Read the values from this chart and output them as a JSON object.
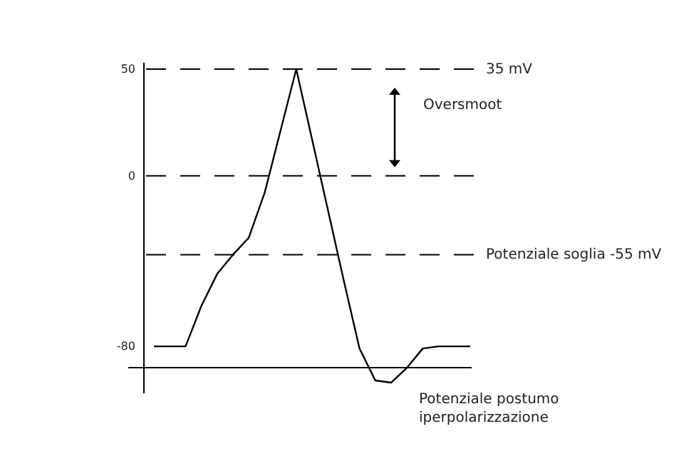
{
  "chart_data": {
    "type": "line",
    "categories": [
      null,
      null,
      null,
      null,
      null,
      null,
      null,
      null,
      null,
      null,
      null,
      null,
      null,
      null,
      null,
      null,
      null,
      null,
      null,
      null,
      null
    ],
    "series": [
      {
        "color": "#000000",
        "values": [
          -80,
          -80,
          -80,
          -61,
          -46,
          -37,
          -29,
          -8,
          21,
          50,
          17,
          -16,
          -49,
          -81,
          -96,
          -97,
          -90,
          -81,
          -80,
          -80,
          -80
        ]
      }
    ],
    "ylim": [
      -102,
      53
    ],
    "yticks": [
      50,
      0,
      -80
    ],
    "tick_labels": "y",
    "grid": false,
    "line_style": "solid",
    "ref_lines": [
      {
        "axis": "y",
        "value": 50,
        "label": "35 mV",
        "line_style": "dashed",
        "color": "#000000"
      },
      {
        "axis": "y",
        "value": 0,
        "label": null,
        "line_style": "dashed",
        "color": "#000000"
      },
      {
        "axis": "y",
        "value": -37,
        "label": "Potenziale soglia -55 mV",
        "line_style": "dashed",
        "color": "#000000"
      },
      {
        "axis": "y",
        "value": -90,
        "label": null,
        "line_style": "solid",
        "color": "#000000"
      }
    ],
    "annotations": [
      "Oversmoot",
      "Potenziale postumo\niperpolarizzazione"
    ]
  }
}
